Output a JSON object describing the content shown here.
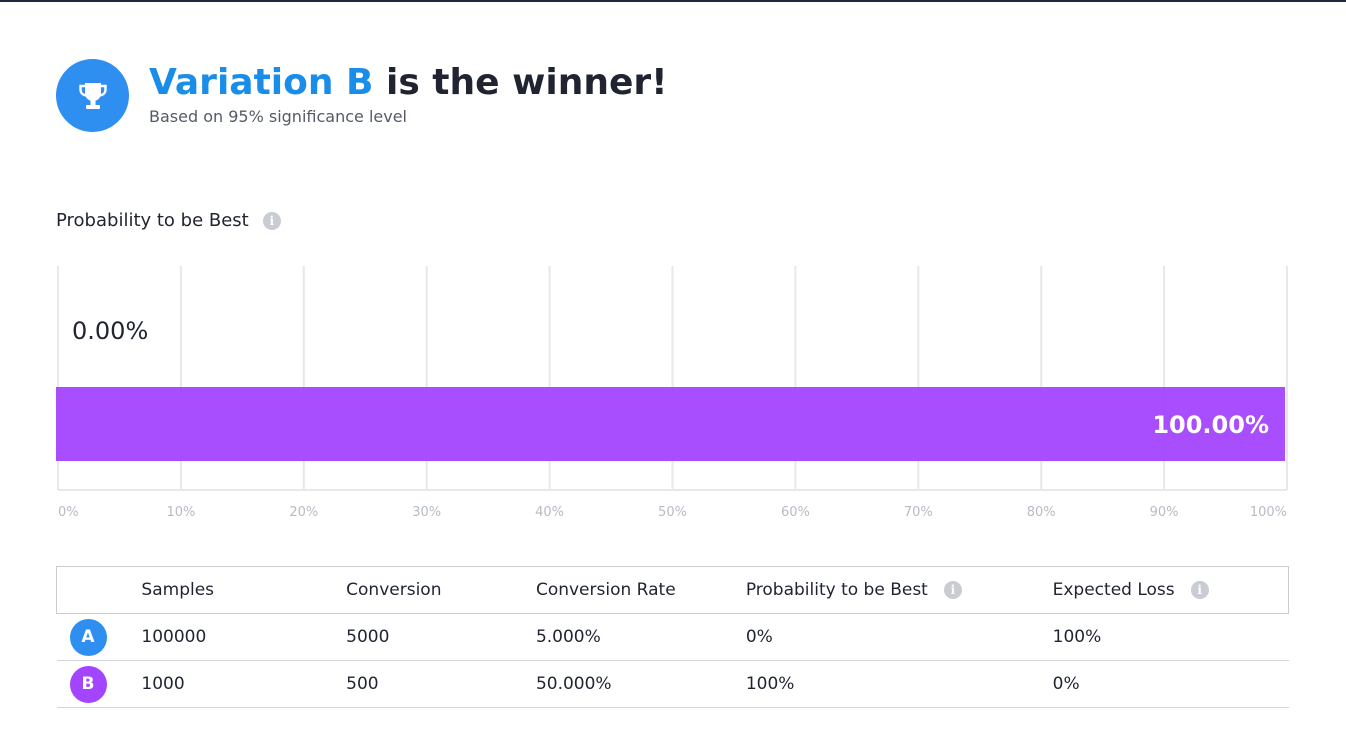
{
  "header": {
    "winner_name": "Variation B",
    "winner_suffix": " is the winner!",
    "subtitle": "Based on 95% significance level"
  },
  "section": {
    "title": "Probability to be Best"
  },
  "colors": {
    "variation_a": "#2e8ff0",
    "variation_b": "#a344ff"
  },
  "chart_data": {
    "type": "bar",
    "orientation": "horizontal",
    "categories": [
      "A",
      "B"
    ],
    "values": [
      0.0,
      100.0
    ],
    "data_labels": [
      "0.00%",
      "100.00%"
    ],
    "colors": [
      "#2e8ff0",
      "#a344ff"
    ],
    "xlim": [
      0,
      100
    ],
    "x_ticks": [
      "0%",
      "10%",
      "20%",
      "30%",
      "40%",
      "50%",
      "60%",
      "70%",
      "80%",
      "90%",
      "100%"
    ],
    "grid": true,
    "title": "",
    "xlabel": "",
    "ylabel": ""
  },
  "table": {
    "columns": [
      "",
      "Samples",
      "Conversion",
      "Conversion Rate",
      "Probability to be Best",
      "Expected Loss"
    ],
    "rows": [
      {
        "variation": "A",
        "samples": "100000",
        "conversion": "5000",
        "rate": "5.000%",
        "prob_best": "0%",
        "expected_loss": "100%"
      },
      {
        "variation": "B",
        "samples": "1000",
        "conversion": "500",
        "rate": "50.000%",
        "prob_best": "100%",
        "expected_loss": "0%"
      }
    ]
  }
}
